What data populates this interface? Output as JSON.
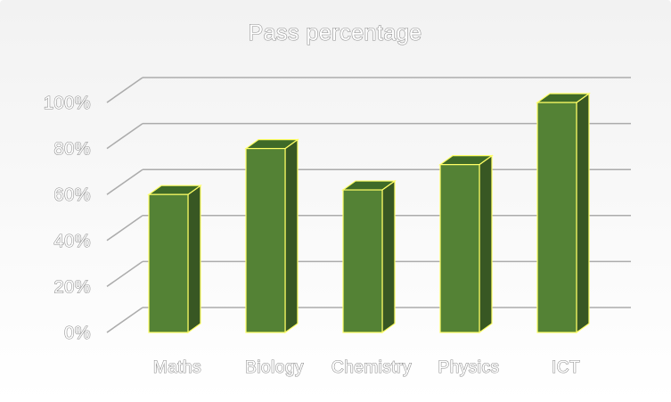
{
  "chart_data": {
    "type": "bar",
    "title": "Pass percentage",
    "categories": [
      "Maths",
      "Biology",
      "Chemistry",
      "Physics",
      "ICT"
    ],
    "values": [
      60,
      80,
      62,
      73,
      100
    ],
    "yticks": [
      "0%",
      "20%",
      "40%",
      "60%",
      "80%",
      "100%"
    ],
    "ylim": [
      0,
      100
    ],
    "xlabel": "",
    "ylabel": "",
    "grid": true,
    "colors": {
      "bar_front": "#548235",
      "bar_side": "#385723",
      "bar_top": "#3f6a28",
      "bar_outline": "#ffff66",
      "gridline": "#ababab",
      "text_fill": "#ffffff",
      "text_outline": "#8c8c8c"
    }
  }
}
